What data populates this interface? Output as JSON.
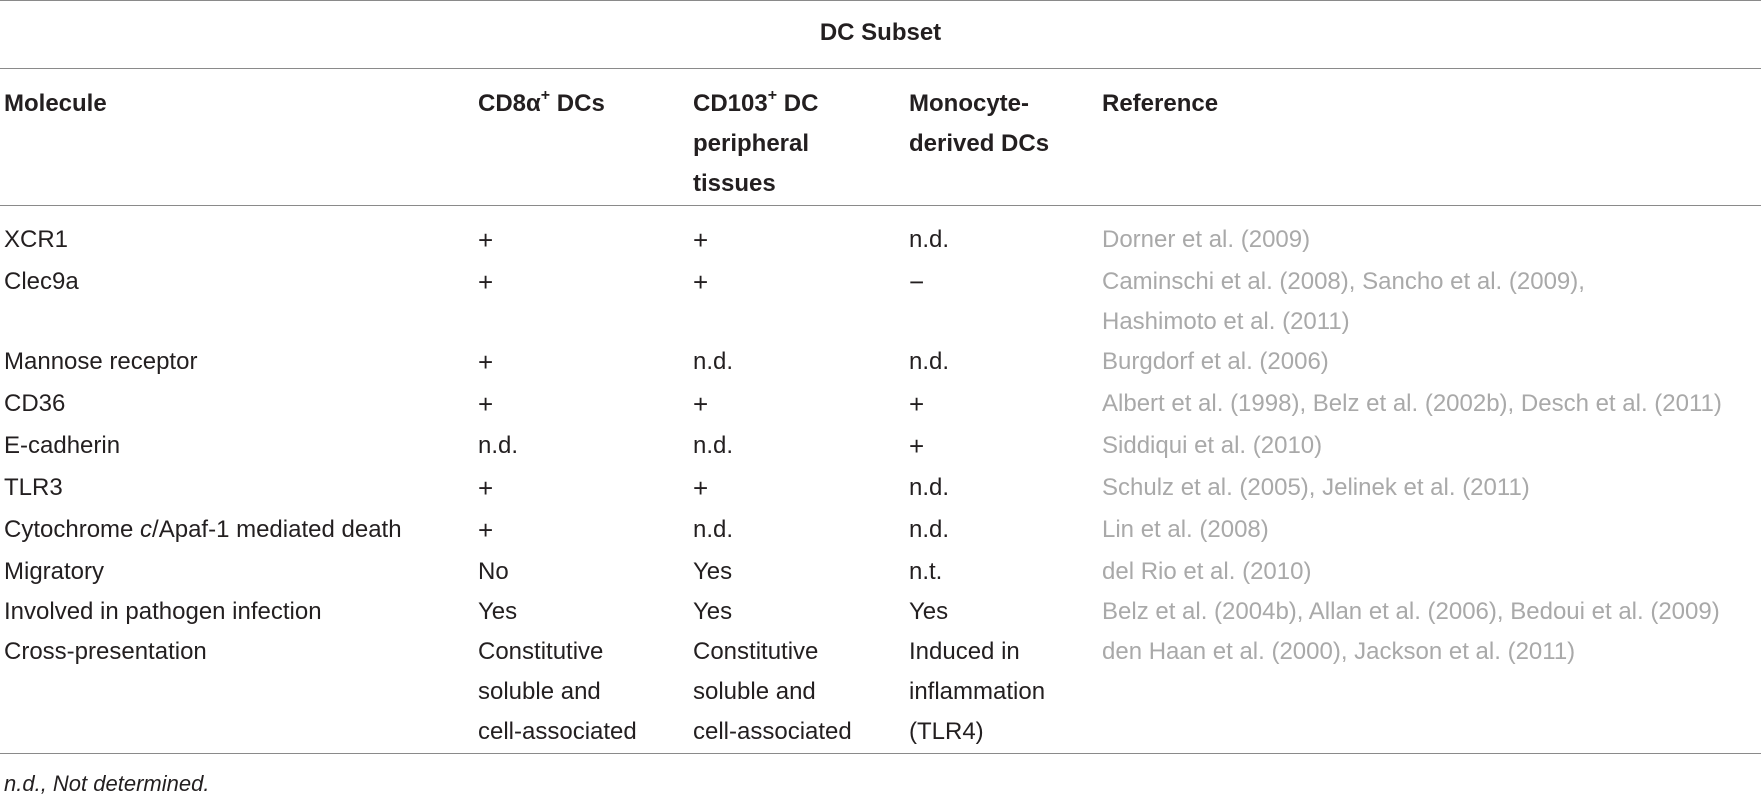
{
  "group_header": "DC Subset",
  "columns": {
    "molecule": "Molecule",
    "cd8_main": "CD8α",
    "cd8_sup": "+",
    "cd8_tail": " DCs",
    "cd103_main": "CD103",
    "cd103_sup": "+",
    "cd103_tail": " DC peripheral tissues",
    "monocyte": "Monocyte-derived DCs",
    "reference": "Reference"
  },
  "rows": [
    {
      "molecule": "XCR1",
      "cd8": "+",
      "cd103": "+",
      "mono": "n.d.",
      "ref": "Dorner et al. (2009)"
    },
    {
      "molecule": "Clec9a",
      "cd8": "+",
      "cd103": "+",
      "mono": "−",
      "ref": "Caminschi et al. (2008), Sancho et al. (2009),",
      "ref2": "Hashimoto et al. (2011)"
    },
    {
      "molecule": "Mannose receptor",
      "cd8": "+",
      "cd103": "n.d.",
      "mono": "n.d.",
      "ref": "Burgdorf et al. (2006)"
    },
    {
      "molecule": "CD36",
      "cd8": "+",
      "cd103": "+",
      "mono": "+",
      "ref": "Albert et al. (1998), Belz et al. (2002b), Desch et al. (2011)"
    },
    {
      "molecule": "E-cadherin",
      "cd8": "n.d.",
      "cd103": "n.d.",
      "mono": "+",
      "ref": "Siddiqui et al. (2010)"
    },
    {
      "molecule": "TLR3",
      "cd8": "+",
      "cd103": "+",
      "mono": "n.d.",
      "ref": "Schulz et al. (2005), Jelinek et al. (2011)"
    },
    {
      "molecule_a": "Cytochrome ",
      "molecule_b": "c",
      "molecule_c": "/Apaf-1 mediated death",
      "cd8": "+",
      "cd103": "n.d.",
      "mono": "n.d.",
      "ref": "Lin et al. (2008)"
    },
    {
      "molecule": "Migratory",
      "cd8": "No",
      "cd103": "Yes",
      "mono": "n.t.",
      "ref": "del Rio et al. (2010)"
    },
    {
      "molecule": "Involved in pathogen infection",
      "cd8": "Yes",
      "cd103": "Yes",
      "mono": "Yes",
      "ref": "Belz et al. (2004b), Allan et al. (2006), Bedoui et al. (2009)"
    },
    {
      "molecule": "Cross-presentation",
      "cd8_l1": "Constitutive",
      "cd8_l2": "soluble and",
      "cd8_l3": "cell-associated",
      "cd103_l1": "Constitutive",
      "cd103_l2": "soluble and",
      "cd103_l3": "cell-associated",
      "mono_l1": "Induced in",
      "mono_l2": "inflammation",
      "mono_l3": "(TLR4)",
      "ref": "den Haan et al. (2000), Jackson et al. (2011)"
    }
  ],
  "footnote": "n.d., Not determined."
}
